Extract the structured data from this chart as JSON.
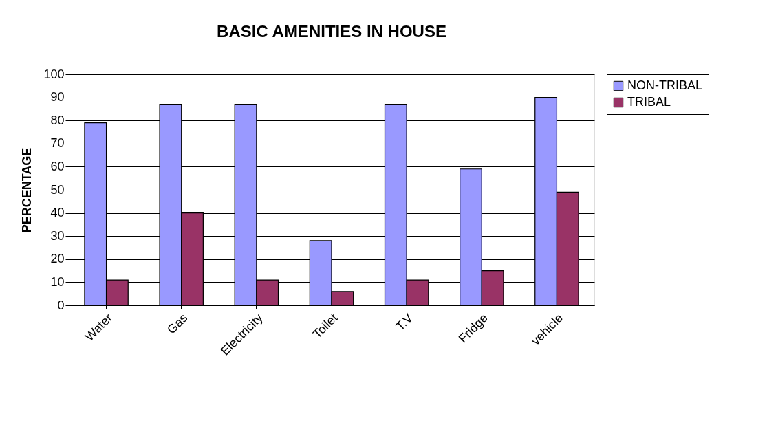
{
  "chart_data": {
    "type": "bar",
    "title": "BASIC AMENITIES IN HOUSE",
    "ylabel": "PERCENTAGE",
    "categories": [
      "Water",
      "Gas",
      "Electricity",
      "Toilet",
      "T.V",
      "Fridge",
      "vehicle"
    ],
    "series": [
      {
        "name": "NON-TRIBAL",
        "color": "#9999ff",
        "values": [
          79,
          87,
          87,
          28,
          87,
          59,
          90
        ]
      },
      {
        "name": "TRIBAL",
        "color": "#993366",
        "values": [
          11,
          40,
          11,
          6,
          11,
          15,
          49
        ]
      }
    ],
    "ylim": [
      0,
      100
    ],
    "yticks": [
      0,
      10,
      20,
      30,
      40,
      50,
      60,
      70,
      80,
      90,
      100
    ],
    "grid": "y",
    "legend": "right"
  }
}
